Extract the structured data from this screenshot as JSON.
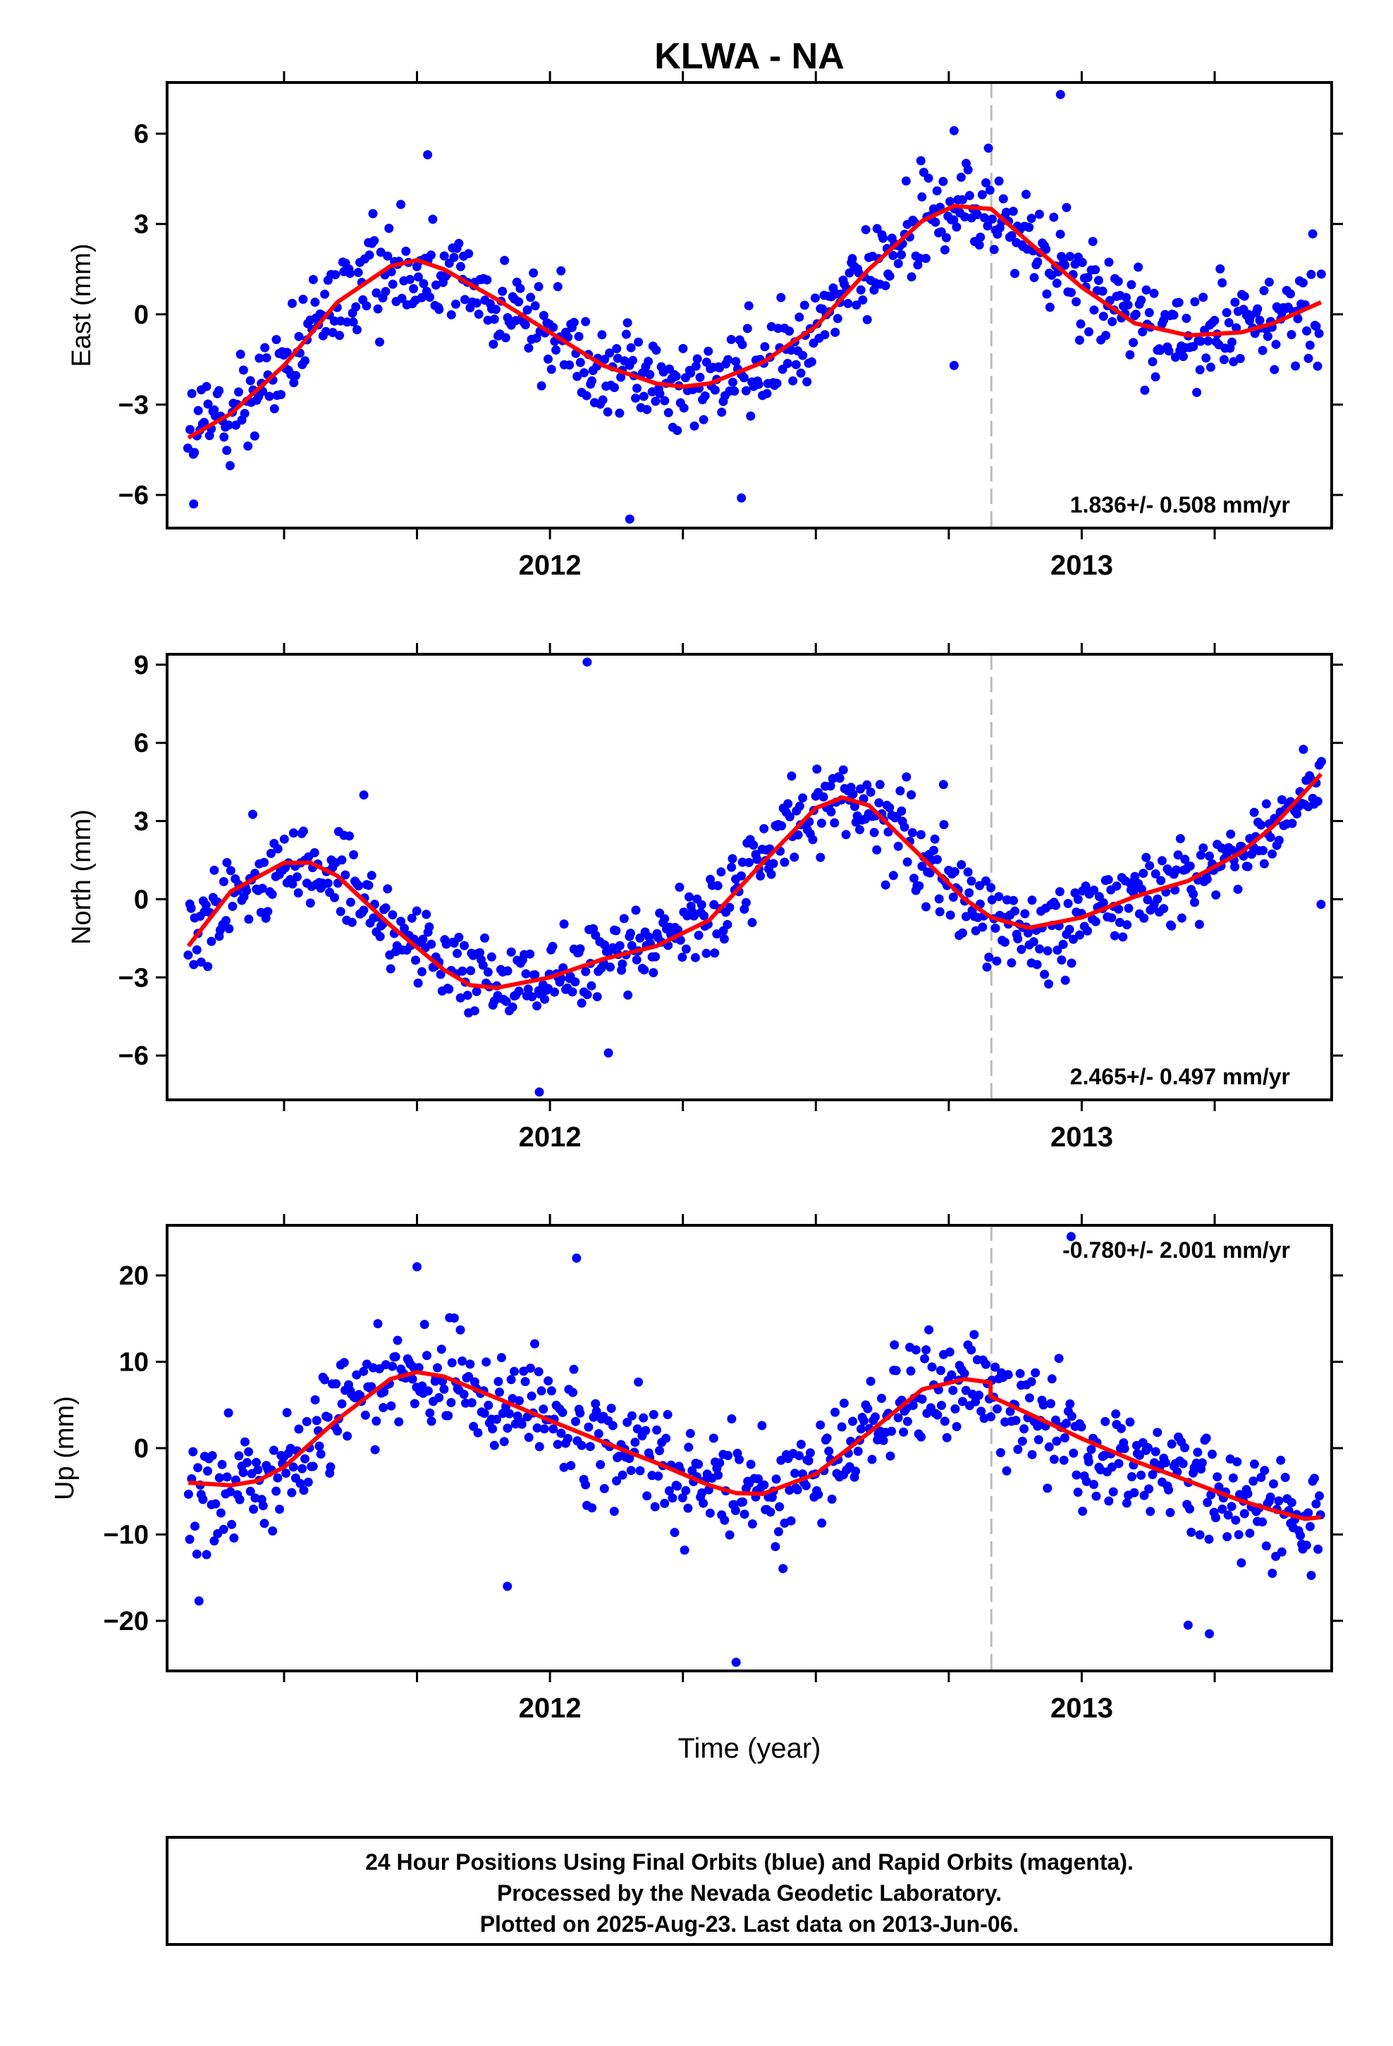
{
  "title": "KLWA - NA",
  "xlabel": "Time (year)",
  "footer": {
    "line1": "24 Hour Positions Using Final Orbits (blue) and Rapid Orbits (magenta).",
    "line2": "Processed by the Nevada Geodetic Laboratory.",
    "line3": "Plotted on 2025-Aug-23. Last data on 2013-Jun-06."
  },
  "colors": {
    "data_points": "#0000ff",
    "model_fit": "#ff0000",
    "equipment_change": "#bbbbbb"
  },
  "chart_data": [
    {
      "type": "scatter",
      "panel": "east",
      "ylabel": "East (mm)",
      "rate_text": "1.836+/- 0.508 mm/yr",
      "rate_placement": "bottom-right",
      "xlim": [
        2011.28,
        2013.47
      ],
      "ylim": [
        -7.1,
        7.7
      ],
      "yticks": [
        -6,
        -3,
        0,
        3,
        6
      ],
      "ytick_labels": [
        "−6",
        "−3",
        "0",
        "3",
        "6"
      ],
      "xticks_labeled": [
        2012,
        2013
      ],
      "xtick_labels": [
        "2012",
        "2013"
      ],
      "xticks_minor": [
        2011.5,
        2011.75,
        2012.25,
        2012.5,
        2012.75,
        2013.25
      ],
      "equipment_change_x": 2012.83,
      "model": {
        "x": [
          2011.32,
          2011.4,
          2011.5,
          2011.6,
          2011.7,
          2011.75,
          2011.8,
          2011.9,
          2012.0,
          2012.1,
          2012.2,
          2012.25,
          2012.3,
          2012.4,
          2012.5,
          2012.6,
          2012.7,
          2012.76,
          2012.83,
          2012.9,
          2013.0,
          2013.1,
          2013.2,
          2013.3,
          2013.36,
          2013.45
        ],
        "y": [
          -4.1,
          -3.3,
          -1.7,
          0.4,
          1.6,
          1.8,
          1.5,
          0.5,
          -0.6,
          -1.7,
          -2.3,
          -2.4,
          -2.3,
          -1.6,
          -0.4,
          1.5,
          3.1,
          3.6,
          3.5,
          2.4,
          0.9,
          -0.3,
          -0.7,
          -0.6,
          -0.3,
          0.4
        ]
      },
      "points": {
        "count": 700,
        "scatter_sd": 1.2
      },
      "outliers": [
        [
          2011.33,
          -6.3
        ],
        [
          2011.77,
          5.3
        ],
        [
          2012.15,
          -6.8
        ],
        [
          2012.36,
          -6.1
        ],
        [
          2012.76,
          6.1
        ],
        [
          2012.96,
          7.3
        ],
        [
          2012.76,
          -1.7
        ]
      ]
    },
    {
      "type": "scatter",
      "panel": "north",
      "ylabel": "North (mm)",
      "rate_text": "2.465+/- 0.497 mm/yr",
      "rate_placement": "bottom-right",
      "xlim": [
        2011.28,
        2013.47
      ],
      "ylim": [
        -7.7,
        9.4
      ],
      "yticks": [
        -6,
        -3,
        0,
        3,
        6,
        9
      ],
      "ytick_labels": [
        "−6",
        "−3",
        "0",
        "3",
        "6",
        "9"
      ],
      "xticks_labeled": [
        2012,
        2013
      ],
      "xtick_labels": [
        "2012",
        "2013"
      ],
      "xticks_minor": [
        2011.5,
        2011.75,
        2012.25,
        2012.5,
        2012.75,
        2013.25
      ],
      "equipment_change_x": 2012.83,
      "model": {
        "x": [
          2011.32,
          2011.4,
          2011.5,
          2011.55,
          2011.6,
          2011.7,
          2011.8,
          2011.85,
          2011.9,
          2012.0,
          2012.1,
          2012.2,
          2012.3,
          2012.4,
          2012.5,
          2012.55,
          2012.6,
          2012.7,
          2012.78,
          2012.83,
          2012.9,
          2013.0,
          2013.1,
          2013.2,
          2013.3,
          2013.36,
          2013.45
        ],
        "y": [
          -1.8,
          0.3,
          1.4,
          1.4,
          0.9,
          -1.0,
          -2.7,
          -3.3,
          -3.4,
          -3.0,
          -2.3,
          -1.8,
          -0.8,
          1.4,
          3.5,
          3.9,
          3.6,
          1.6,
          0.0,
          -0.7,
          -1.1,
          -0.7,
          0.1,
          0.7,
          1.8,
          2.8,
          4.8
        ]
      },
      "points": {
        "count": 700,
        "scatter_sd": 1.15
      },
      "outliers": [
        [
          2012.07,
          9.1
        ],
        [
          2011.98,
          -7.4
        ],
        [
          2011.65,
          4.0
        ],
        [
          2012.11,
          -5.9
        ],
        [
          2013.45,
          -0.2
        ],
        [
          2012.74,
          4.4
        ]
      ]
    },
    {
      "type": "scatter",
      "panel": "up",
      "ylabel": "Up (mm)",
      "rate_text": "-0.780+/- 2.001 mm/yr",
      "rate_placement": "top-right",
      "xlim": [
        2011.28,
        2013.47
      ],
      "ylim": [
        -25.8,
        25.8
      ],
      "yticks": [
        -20,
        -10,
        0,
        10,
        20
      ],
      "ytick_labels": [
        "−20",
        "−10",
        "0",
        "10",
        "20"
      ],
      "xticks_labeled": [
        2012,
        2013
      ],
      "xtick_labels": [
        "2012",
        "2013"
      ],
      "xticks_minor": [
        2011.5,
        2011.75,
        2012.25,
        2012.5,
        2012.75,
        2013.25
      ],
      "equipment_change_x": 2012.83,
      "model": {
        "x": [
          2011.32,
          2011.4,
          2011.45,
          2011.5,
          2011.6,
          2011.7,
          2011.75,
          2011.8,
          2011.9,
          2012.0,
          2012.1,
          2012.2,
          2012.3,
          2012.35,
          2012.4,
          2012.5,
          2012.6,
          2012.7,
          2012.78,
          2012.8285,
          2012.8286,
          2012.9,
          2013.0,
          2013.1,
          2013.2,
          2013.3,
          2013.36,
          2013.42,
          2013.45
        ],
        "y": [
          -4.0,
          -4.3,
          -3.8,
          -2.2,
          3.3,
          8.0,
          8.8,
          8.3,
          5.8,
          3.2,
          0.7,
          -1.7,
          -4.3,
          -5.2,
          -5.3,
          -3.0,
          1.8,
          6.8,
          8.0,
          7.6,
          6.0,
          4.0,
          1.1,
          -1.5,
          -3.8,
          -6.1,
          -7.2,
          -8.2,
          -8.0
        ]
      },
      "points": {
        "count": 700,
        "scatter_sd": 4.3
      },
      "outliers": [
        [
          2011.75,
          21.0
        ],
        [
          2012.05,
          22.0
        ],
        [
          2012.35,
          -24.8
        ],
        [
          2012.98,
          24.5
        ],
        [
          2011.34,
          -17.7
        ],
        [
          2011.92,
          -16.0
        ],
        [
          2013.24,
          -21.5
        ],
        [
          2013.2,
          -20.5
        ]
      ]
    }
  ]
}
